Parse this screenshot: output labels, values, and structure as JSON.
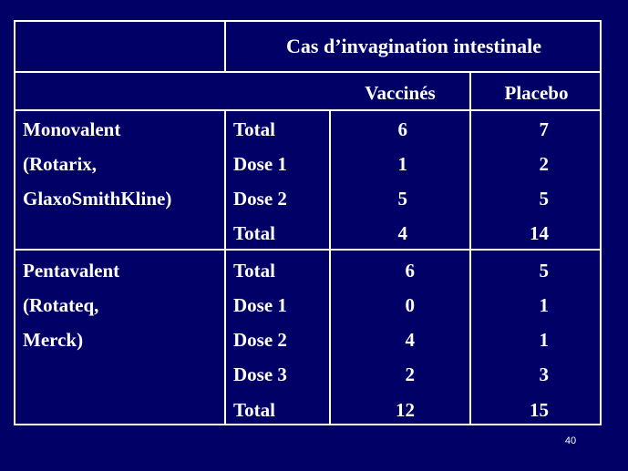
{
  "header": {
    "title": "Cas d’invagination intestinale",
    "col_vaccines": "Vaccinés",
    "col_placebo": "Placebo"
  },
  "groups": [
    {
      "name_lines": [
        "Monovalent",
        "(Rotarix,",
        "GlaxoSmithKline)"
      ],
      "rows": [
        {
          "label": "Total",
          "vaccines": "6",
          "placebo": "7"
        },
        {
          "label": "Dose 1",
          "vaccines": "1",
          "placebo": "2"
        },
        {
          "label": "Dose 2",
          "vaccines": "5",
          "placebo": "5"
        },
        {
          "label": "Total",
          "vaccines": "4",
          "placebo": "14"
        }
      ]
    },
    {
      "name_lines": [
        "Pentavalent",
        "(Rotateq,",
        "Merck)"
      ],
      "rows": [
        {
          "label": "Total",
          "vaccines": "6",
          "placebo": "5"
        },
        {
          "label": "Dose 1",
          "vaccines": "0",
          "placebo": "1"
        },
        {
          "label": "Dose 2",
          "vaccines": "4",
          "placebo": "1"
        },
        {
          "label": "Dose 3",
          "vaccines": "2",
          "placebo": "3"
        },
        {
          "label": "Total",
          "vaccines": "12",
          "placebo": "15"
        }
      ]
    }
  ],
  "footer": {
    "slide_number": "40"
  }
}
